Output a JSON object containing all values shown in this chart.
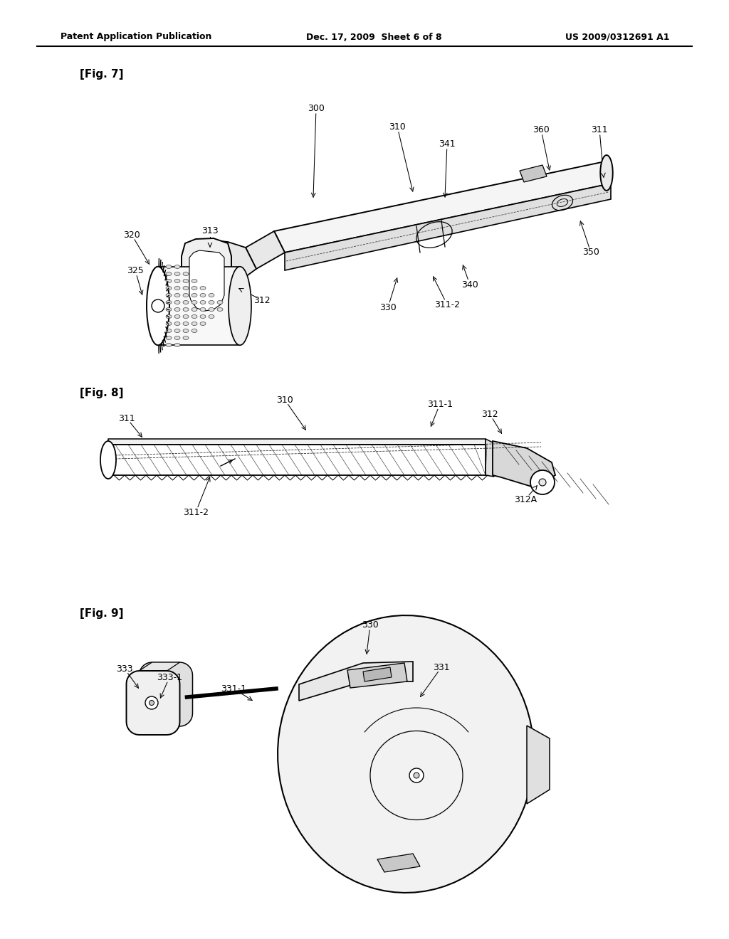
{
  "bg_color": "#ffffff",
  "line_color": "#000000",
  "text_color": "#000000",
  "header_left": "Patent Application Publication",
  "header_mid": "Dec. 17, 2009  Sheet 6 of 8",
  "header_right": "US 2009/0312691 A1",
  "fig7_label": "[Fig. 7]",
  "fig8_label": "[Fig. 8]",
  "fig9_label": "[Fig. 9]",
  "lw_main": 1.3,
  "lw_thin": 0.7,
  "lw_thick": 2.0
}
